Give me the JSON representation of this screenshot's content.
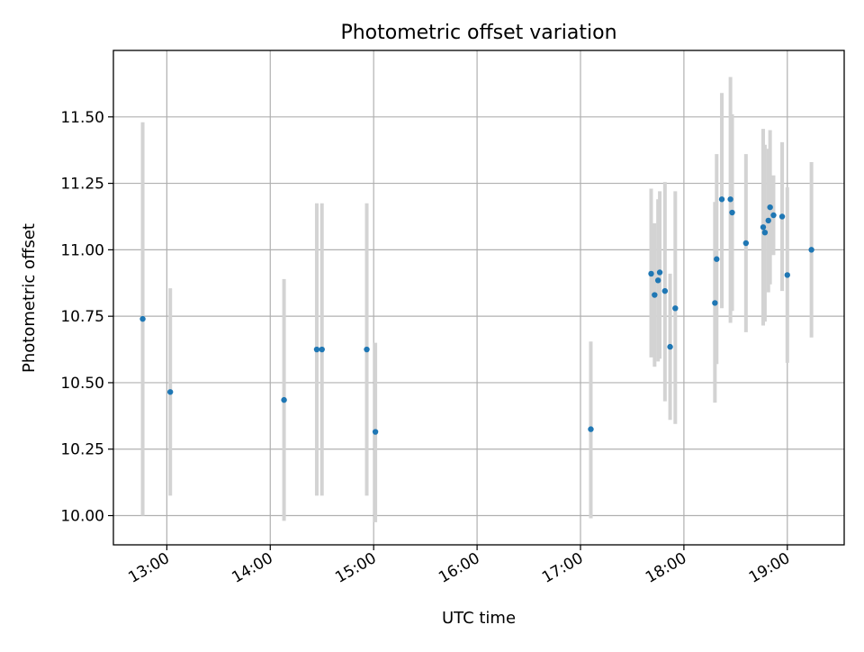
{
  "chart_data": {
    "type": "scatter",
    "title": "Photometric offset variation",
    "xlabel": "UTC time",
    "ylabel": "Photometric offset",
    "x_ticks": [
      "13:00",
      "14:00",
      "15:00",
      "16:00",
      "17:00",
      "18:00",
      "19:00"
    ],
    "y_ticks": [
      "10.00",
      "10.25",
      "10.50",
      "10.75",
      "11.00",
      "11.25",
      "11.50"
    ],
    "xlim": [
      "12:29",
      "19:33"
    ],
    "ylim": [
      9.89,
      11.75
    ],
    "grid": true,
    "colors": {
      "point": "#1f77b4",
      "errorbar": "#d3d3d3",
      "grid": "#b0b0b0"
    },
    "points": [
      {
        "x": "12:46",
        "y": 10.74,
        "ylo": 10.0,
        "yhi": 11.48
      },
      {
        "x": "13:02",
        "y": 10.465,
        "ylo": 10.075,
        "yhi": 10.855
      },
      {
        "x": "14:08",
        "y": 10.435,
        "ylo": 9.98,
        "yhi": 10.89
      },
      {
        "x": "14:27",
        "y": 10.625,
        "ylo": 10.075,
        "yhi": 11.175
      },
      {
        "x": "14:30",
        "y": 10.625,
        "ylo": 10.075,
        "yhi": 11.175
      },
      {
        "x": "14:56",
        "y": 10.625,
        "ylo": 10.075,
        "yhi": 11.175
      },
      {
        "x": "15:01",
        "y": 10.315,
        "ylo": 9.975,
        "yhi": 10.65
      },
      {
        "x": "17:06",
        "y": 10.325,
        "ylo": 9.99,
        "yhi": 10.655
      },
      {
        "x": "17:41",
        "y": 10.91,
        "ylo": 10.595,
        "yhi": 11.23
      },
      {
        "x": "17:43",
        "y": 10.83,
        "ylo": 10.56,
        "yhi": 11.1
      },
      {
        "x": "17:45",
        "y": 10.885,
        "ylo": 10.58,
        "yhi": 11.19
      },
      {
        "x": "17:46",
        "y": 10.915,
        "ylo": 10.59,
        "yhi": 11.22
      },
      {
        "x": "17:49",
        "y": 10.845,
        "ylo": 10.43,
        "yhi": 11.255
      },
      {
        "x": "17:52",
        "y": 10.635,
        "ylo": 10.36,
        "yhi": 10.91
      },
      {
        "x": "17:55",
        "y": 10.78,
        "ylo": 10.345,
        "yhi": 11.22
      },
      {
        "x": "18:18",
        "y": 10.8,
        "ylo": 10.425,
        "yhi": 11.18
      },
      {
        "x": "18:19",
        "y": 10.965,
        "ylo": 10.57,
        "yhi": 11.36
      },
      {
        "x": "18:22",
        "y": 11.19,
        "ylo": 10.78,
        "yhi": 11.59
      },
      {
        "x": "18:27",
        "y": 11.19,
        "ylo": 10.725,
        "yhi": 11.65
      },
      {
        "x": "18:28",
        "y": 11.14,
        "ylo": 10.77,
        "yhi": 11.51
      },
      {
        "x": "18:36",
        "y": 11.025,
        "ylo": 10.69,
        "yhi": 11.36
      },
      {
        "x": "18:46",
        "y": 11.085,
        "ylo": 10.715,
        "yhi": 11.455
      },
      {
        "x": "18:47",
        "y": 11.065,
        "ylo": 10.73,
        "yhi": 11.395
      },
      {
        "x": "18:49",
        "y": 11.11,
        "ylo": 10.84,
        "yhi": 11.38
      },
      {
        "x": "18:50",
        "y": 11.16,
        "ylo": 10.87,
        "yhi": 11.45
      },
      {
        "x": "18:52",
        "y": 11.13,
        "ylo": 10.98,
        "yhi": 11.28
      },
      {
        "x": "18:57",
        "y": 11.125,
        "ylo": 10.845,
        "yhi": 11.405
      },
      {
        "x": "19:00",
        "y": 10.905,
        "ylo": 10.575,
        "yhi": 11.235
      },
      {
        "x": "19:14",
        "y": 11.0,
        "ylo": 10.67,
        "yhi": 11.33
      }
    ]
  }
}
